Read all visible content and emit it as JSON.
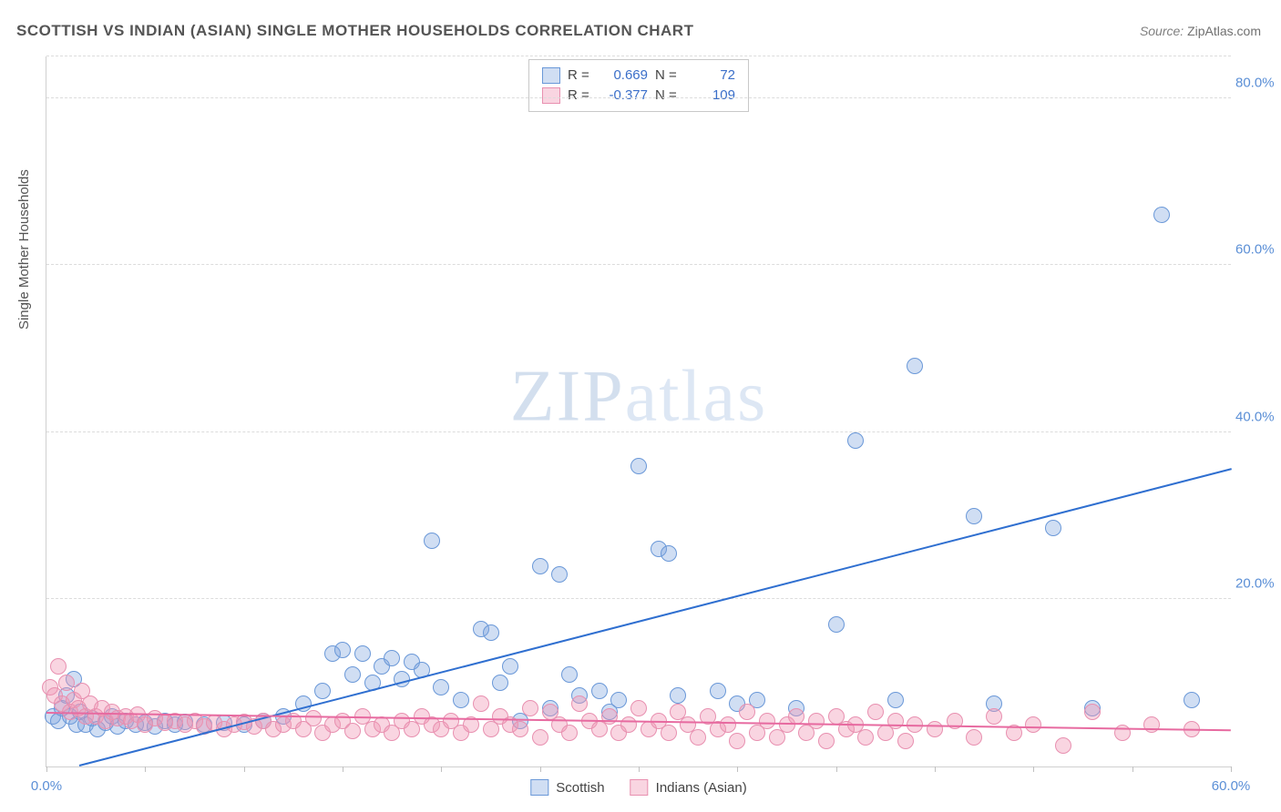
{
  "title": "SCOTTISH VS INDIAN (ASIAN) SINGLE MOTHER HOUSEHOLDS CORRELATION CHART",
  "source_label": "Source:",
  "source_value": "ZipAtlas.com",
  "watermark_a": "ZIP",
  "watermark_b": "atlas",
  "y_axis_title": "Single Mother Households",
  "chart": {
    "type": "scatter",
    "xlim": [
      0,
      60
    ],
    "ylim": [
      0,
      85
    ],
    "x_ticks": [
      0,
      5,
      10,
      15,
      20,
      25,
      30,
      35,
      40,
      45,
      50,
      55,
      60
    ],
    "x_tick_labels": {
      "0": "0.0%",
      "60": "60.0%"
    },
    "y_gridlines": [
      20,
      40,
      60,
      80,
      85
    ],
    "y_tick_labels": {
      "20": "20.0%",
      "40": "40.0%",
      "60": "60.0%",
      "80": "80.0%"
    },
    "background_color": "#ffffff",
    "grid_color": "#dcdcdc",
    "axis_color": "#d0d0d0",
    "tick_label_color": "#5b8fd6",
    "marker_radius": 8,
    "marker_border_width": 1,
    "series": [
      {
        "name": "Scottish",
        "legend_label": "Scottish",
        "fill": "rgba(120,160,220,0.35)",
        "stroke": "#6a98d8",
        "R": "0.669",
        "N": "72",
        "trend": {
          "x1": 0,
          "y1": -1,
          "x2": 60,
          "y2": 35.5,
          "color": "#2f6fd0",
          "width": 2
        },
        "points": [
          [
            0.3,
            6.0
          ],
          [
            0.6,
            5.5
          ],
          [
            0.8,
            7.0
          ],
          [
            1.0,
            8.5
          ],
          [
            1.2,
            6.0
          ],
          [
            1.4,
            10.5
          ],
          [
            1.5,
            5.0
          ],
          [
            1.7,
            6.5
          ],
          [
            2.0,
            5.0
          ],
          [
            2.3,
            5.8
          ],
          [
            2.6,
            4.5
          ],
          [
            3.0,
            5.2
          ],
          [
            3.3,
            6.0
          ],
          [
            3.6,
            4.8
          ],
          [
            4.0,
            5.5
          ],
          [
            4.5,
            5.0
          ],
          [
            5.0,
            5.2
          ],
          [
            5.5,
            4.8
          ],
          [
            6.0,
            5.5
          ],
          [
            6.5,
            5.0
          ],
          [
            7.0,
            5.3
          ],
          [
            8.0,
            5.0
          ],
          [
            9.0,
            5.2
          ],
          [
            10.0,
            5.0
          ],
          [
            11.0,
            5.5
          ],
          [
            12.0,
            6.0
          ],
          [
            13.0,
            7.5
          ],
          [
            14.0,
            9.0
          ],
          [
            14.5,
            13.5
          ],
          [
            15.0,
            14.0
          ],
          [
            15.5,
            11.0
          ],
          [
            16.0,
            13.5
          ],
          [
            16.5,
            10.0
          ],
          [
            17.0,
            12.0
          ],
          [
            17.5,
            13.0
          ],
          [
            18.0,
            10.5
          ],
          [
            18.5,
            12.5
          ],
          [
            19.0,
            11.5
          ],
          [
            19.5,
            27.0
          ],
          [
            20.0,
            9.5
          ],
          [
            21.0,
            8.0
          ],
          [
            22.0,
            16.5
          ],
          [
            22.5,
            16.0
          ],
          [
            23.0,
            10.0
          ],
          [
            23.5,
            12.0
          ],
          [
            24.0,
            5.5
          ],
          [
            25.0,
            24.0
          ],
          [
            25.5,
            7.0
          ],
          [
            26.0,
            23.0
          ],
          [
            26.5,
            11.0
          ],
          [
            27.0,
            8.5
          ],
          [
            28.0,
            9.0
          ],
          [
            28.5,
            6.5
          ],
          [
            29.0,
            8.0
          ],
          [
            30.0,
            36.0
          ],
          [
            31.0,
            26.0
          ],
          [
            31.5,
            25.5
          ],
          [
            32.0,
            8.5
          ],
          [
            34.0,
            9.0
          ],
          [
            35.0,
            7.5
          ],
          [
            36.0,
            8.0
          ],
          [
            38.0,
            7.0
          ],
          [
            40.0,
            17.0
          ],
          [
            41.0,
            39.0
          ],
          [
            43.0,
            8.0
          ],
          [
            44.0,
            48.0
          ],
          [
            47.0,
            30.0
          ],
          [
            48.0,
            7.5
          ],
          [
            51.0,
            28.5
          ],
          [
            53.0,
            7.0
          ],
          [
            56.5,
            66.0
          ],
          [
            58.0,
            8.0
          ]
        ]
      },
      {
        "name": "Indians (Asian)",
        "legend_label": "Indians (Asian)",
        "fill": "rgba(240,150,180,0.40)",
        "stroke": "#e890b0",
        "R": "-0.377",
        "N": "109",
        "trend": {
          "x1": 0,
          "y1": 6.3,
          "x2": 60,
          "y2": 4.2,
          "color": "#e76aa0",
          "width": 2
        },
        "points": [
          [
            0.2,
            9.5
          ],
          [
            0.4,
            8.5
          ],
          [
            0.6,
            12.0
          ],
          [
            0.8,
            7.5
          ],
          [
            1.0,
            10.0
          ],
          [
            1.2,
            6.5
          ],
          [
            1.4,
            8.0
          ],
          [
            1.6,
            7.0
          ],
          [
            1.8,
            9.0
          ],
          [
            2.0,
            6.0
          ],
          [
            2.2,
            7.5
          ],
          [
            2.5,
            6.0
          ],
          [
            2.8,
            7.0
          ],
          [
            3.0,
            5.5
          ],
          [
            3.3,
            6.5
          ],
          [
            3.6,
            5.8
          ],
          [
            4.0,
            6.0
          ],
          [
            4.3,
            5.5
          ],
          [
            4.6,
            6.2
          ],
          [
            5.0,
            5.0
          ],
          [
            5.5,
            5.8
          ],
          [
            6.0,
            5.2
          ],
          [
            6.5,
            5.5
          ],
          [
            7.0,
            5.0
          ],
          [
            7.5,
            5.5
          ],
          [
            8.0,
            4.8
          ],
          [
            8.5,
            5.2
          ],
          [
            9.0,
            4.5
          ],
          [
            9.5,
            5.0
          ],
          [
            10.0,
            5.3
          ],
          [
            10.5,
            4.8
          ],
          [
            11.0,
            5.5
          ],
          [
            11.5,
            4.5
          ],
          [
            12.0,
            5.0
          ],
          [
            12.5,
            5.5
          ],
          [
            13.0,
            4.5
          ],
          [
            13.5,
            5.8
          ],
          [
            14.0,
            4.0
          ],
          [
            14.5,
            5.0
          ],
          [
            15.0,
            5.5
          ],
          [
            15.5,
            4.2
          ],
          [
            16.0,
            6.0
          ],
          [
            16.5,
            4.5
          ],
          [
            17.0,
            5.0
          ],
          [
            17.5,
            4.0
          ],
          [
            18.0,
            5.5
          ],
          [
            18.5,
            4.5
          ],
          [
            19.0,
            6.0
          ],
          [
            19.5,
            5.0
          ],
          [
            20.0,
            4.5
          ],
          [
            20.5,
            5.5
          ],
          [
            21.0,
            4.0
          ],
          [
            21.5,
            5.0
          ],
          [
            22.0,
            7.5
          ],
          [
            22.5,
            4.5
          ],
          [
            23.0,
            6.0
          ],
          [
            23.5,
            5.0
          ],
          [
            24.0,
            4.5
          ],
          [
            24.5,
            7.0
          ],
          [
            25.0,
            3.5
          ],
          [
            25.5,
            6.5
          ],
          [
            26.0,
            5.0
          ],
          [
            26.5,
            4.0
          ],
          [
            27.0,
            7.5
          ],
          [
            27.5,
            5.5
          ],
          [
            28.0,
            4.5
          ],
          [
            28.5,
            6.0
          ],
          [
            29.0,
            4.0
          ],
          [
            29.5,
            5.0
          ],
          [
            30.0,
            7.0
          ],
          [
            30.5,
            4.5
          ],
          [
            31.0,
            5.5
          ],
          [
            31.5,
            4.0
          ],
          [
            32.0,
            6.5
          ],
          [
            32.5,
            5.0
          ],
          [
            33.0,
            3.5
          ],
          [
            33.5,
            6.0
          ],
          [
            34.0,
            4.5
          ],
          [
            34.5,
            5.0
          ],
          [
            35.0,
            3.0
          ],
          [
            35.5,
            6.5
          ],
          [
            36.0,
            4.0
          ],
          [
            36.5,
            5.5
          ],
          [
            37.0,
            3.5
          ],
          [
            37.5,
            5.0
          ],
          [
            38.0,
            6.0
          ],
          [
            38.5,
            4.0
          ],
          [
            39.0,
            5.5
          ],
          [
            39.5,
            3.0
          ],
          [
            40.0,
            6.0
          ],
          [
            40.5,
            4.5
          ],
          [
            41.0,
            5.0
          ],
          [
            41.5,
            3.5
          ],
          [
            42.0,
            6.5
          ],
          [
            42.5,
            4.0
          ],
          [
            43.0,
            5.5
          ],
          [
            43.5,
            3.0
          ],
          [
            44.0,
            5.0
          ],
          [
            45.0,
            4.5
          ],
          [
            46.0,
            5.5
          ],
          [
            47.0,
            3.5
          ],
          [
            48.0,
            6.0
          ],
          [
            49.0,
            4.0
          ],
          [
            50.0,
            5.0
          ],
          [
            51.5,
            2.5
          ],
          [
            53.0,
            6.5
          ],
          [
            54.5,
            4.0
          ],
          [
            56.0,
            5.0
          ],
          [
            58.0,
            4.5
          ]
        ]
      }
    ]
  },
  "legend_labels": {
    "R": "R =",
    "N": "N ="
  }
}
